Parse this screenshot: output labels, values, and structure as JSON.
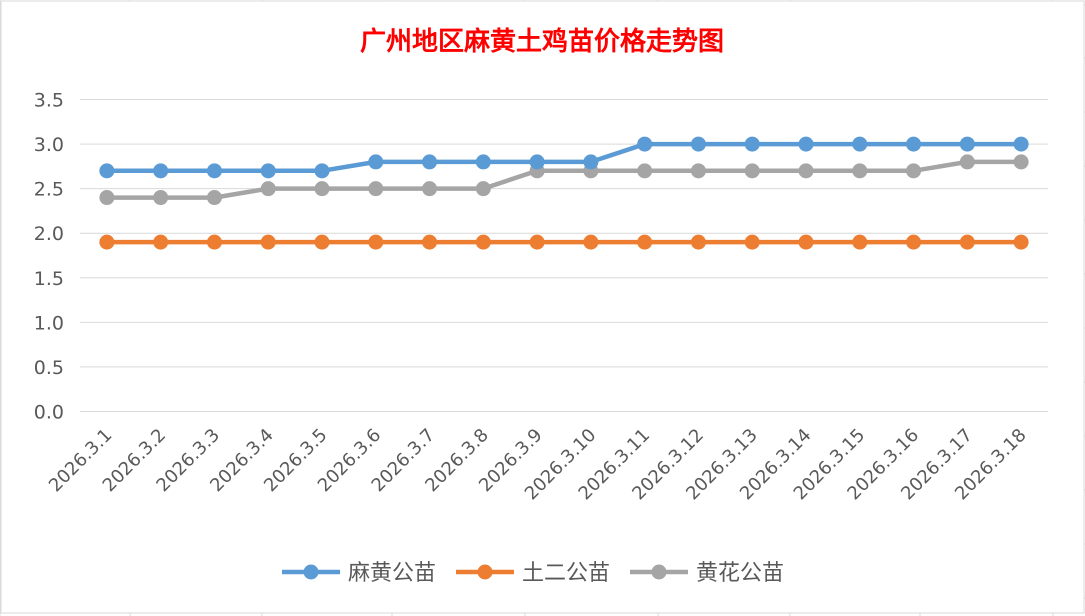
{
  "chart_data": {
    "type": "line",
    "title": "广州地区麻黄土鸡苗价格走势图",
    "title_color": "#ff0000",
    "xlabel": "",
    "ylabel": "",
    "categories": [
      "2026.3.1",
      "2026.3.2",
      "2026.3.3",
      "2026.3.4",
      "2026.3.5",
      "2026.3.6",
      "2026.3.7",
      "2026.3.8",
      "2026.3.9",
      "2026.3.10",
      "2026.3.11",
      "2026.3.12",
      "2026.3.13",
      "2026.3.14",
      "2026.3.15",
      "2026.3.16",
      "2026.3.17",
      "2026.3.18"
    ],
    "ylim": [
      0,
      3.5
    ],
    "yticks": [
      "0.0",
      "0.5",
      "1.0",
      "1.5",
      "2.0",
      "2.5",
      "3.0",
      "3.5"
    ],
    "grid": true,
    "legend_position": "bottom",
    "series": [
      {
        "name": "麻黄公苗",
        "color": "#5b9bd5",
        "values": [
          2.7,
          2.7,
          2.7,
          2.7,
          2.7,
          2.8,
          2.8,
          2.8,
          2.8,
          2.8,
          3.0,
          3.0,
          3.0,
          3.0,
          3.0,
          3.0,
          3.0,
          3.0
        ]
      },
      {
        "name": "土二公苗",
        "color": "#ed7d31",
        "values": [
          1.9,
          1.9,
          1.9,
          1.9,
          1.9,
          1.9,
          1.9,
          1.9,
          1.9,
          1.9,
          1.9,
          1.9,
          1.9,
          1.9,
          1.9,
          1.9,
          1.9,
          1.9
        ]
      },
      {
        "name": "黄花公苗",
        "color": "#a5a5a5",
        "values": [
          2.4,
          2.4,
          2.4,
          2.5,
          2.5,
          2.5,
          2.5,
          2.5,
          2.7,
          2.7,
          2.7,
          2.7,
          2.7,
          2.7,
          2.7,
          2.7,
          2.8,
          2.8
        ]
      }
    ]
  }
}
